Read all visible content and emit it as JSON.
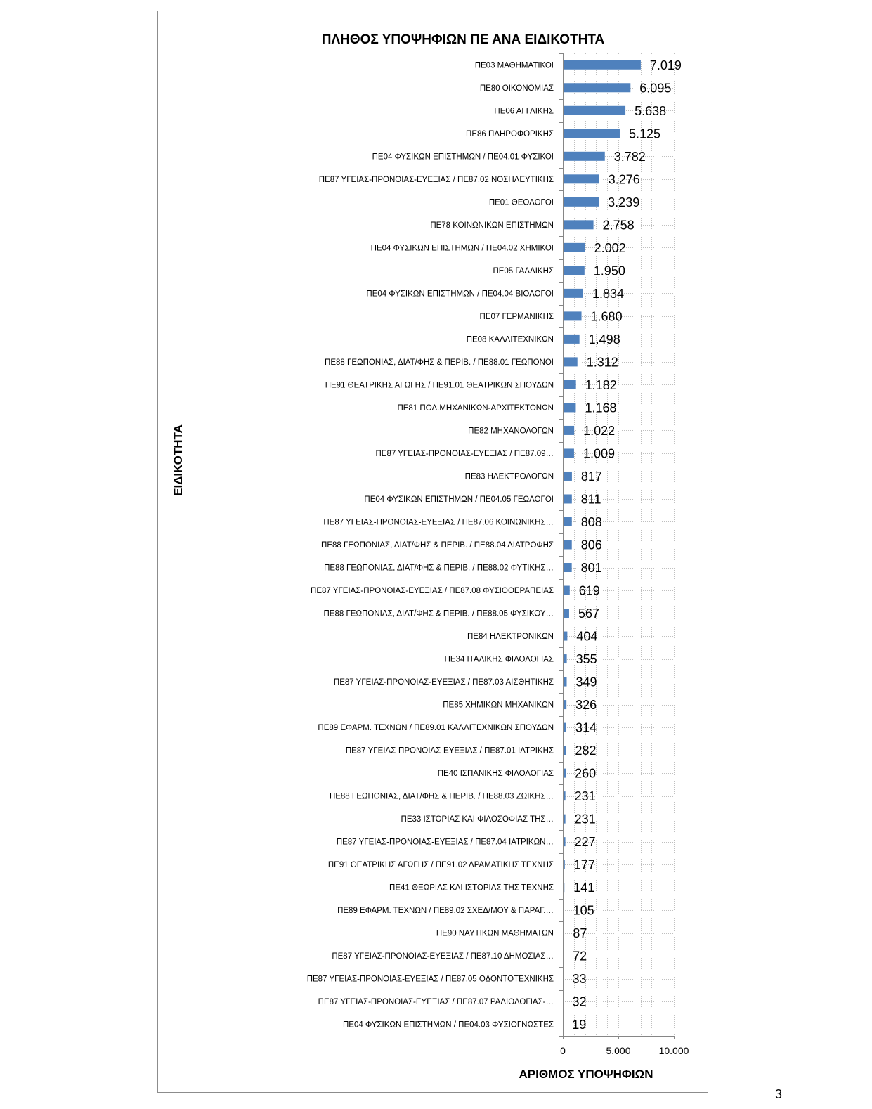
{
  "page_number": "3",
  "chart_data": {
    "type": "bar",
    "orientation": "horizontal",
    "title": "ΠΛΗΘΟΣ ΥΠΟΨΗΦΙΩΝ ΠΕ ΑΝΑ ΕΙΔΙΚΟΤΗΤΑ",
    "xlabel": "ΑΡΙΘΜΟΣ ΥΠΟΨΗΦΙΩΝ",
    "ylabel": "ΕΙΔΙΚΟΤΗΤΑ",
    "xlim": [
      0,
      10000
    ],
    "xticks": [
      0,
      5000,
      10000
    ],
    "xtick_labels": [
      "0",
      "5.000",
      "10.000"
    ],
    "grid": true,
    "bar_color": "#4F81BD",
    "categories": [
      "ΠΕ03 ΜΑΘΗΜΑΤΙΚΟΙ",
      "ΠΕ80 ΟΙΚΟΝΟΜΙΑΣ",
      "ΠΕ06 ΑΓΓΛΙΚΗΣ",
      "ΠΕ86 ΠΛΗΡΟΦΟΡΙΚΗΣ",
      "ΠΕ04 ΦΥΣΙΚΩΝ ΕΠΙΣΤΗΜΩΝ / ΠΕ04.01 ΦΥΣΙΚΟΙ",
      "ΠΕ87 ΥΓΕΙΑΣ-ΠΡΟΝΟΙΑΣ-ΕΥΕΞΙΑΣ / ΠΕ87.02 ΝΟΣΗΛΕΥΤΙΚΗΣ",
      "ΠΕ01 ΘΕΟΛΟΓΟΙ",
      "ΠΕ78 ΚΟΙΝΩΝΙΚΩΝ ΕΠΙΣΤΗΜΩΝ",
      "ΠΕ04 ΦΥΣΙΚΩΝ ΕΠΙΣΤΗΜΩΝ / ΠΕ04.02 ΧΗΜΙΚΟΙ",
      "ΠΕ05 ΓΑΛΛΙΚΗΣ",
      "ΠΕ04 ΦΥΣΙΚΩΝ ΕΠΙΣΤΗΜΩΝ / ΠΕ04.04 ΒΙΟΛΟΓΟΙ",
      "ΠΕ07 ΓΕΡΜΑΝΙΚΗΣ",
      "ΠΕ08 ΚΑΛΛΙΤΕΧΝΙΚΩΝ",
      "ΠΕ88 ΓΕΩΠΟΝΙΑΣ, ΔΙΑΤ/ΦΗΣ & ΠΕΡΙΒ. / ΠΕ88.01 ΓΕΩΠΟΝΟΙ",
      "ΠΕ91 ΘΕΑΤΡΙΚΗΣ ΑΓΩΓΗΣ / ΠΕ91.01 ΘΕΑΤΡΙΚΩΝ ΣΠΟΥΔΩΝ",
      "ΠΕ81 ΠΟΛ.ΜΗΧΑΝΙΚΩΝ-ΑΡΧΙΤΕΚΤΟΝΩΝ",
      "ΠΕ82 ΜΗΧΑΝΟΛΟΓΩΝ",
      "ΠΕ87 ΥΓΕΙΑΣ-ΠΡΟΝΟΙΑΣ-ΕΥΕΞΙΑΣ / ΠΕ87.09…",
      "ΠΕ83 ΗΛΕΚΤΡΟΛΟΓΩΝ",
      "ΠΕ04 ΦΥΣΙΚΩΝ ΕΠΙΣΤΗΜΩΝ / ΠΕ04.05 ΓΕΩΛΟΓΟΙ",
      "ΠΕ87 ΥΓΕΙΑΣ-ΠΡΟΝΟΙΑΣ-ΕΥΕΞΙΑΣ / ΠΕ87.06 ΚΟΙΝΩΝΙΚΗΣ…",
      "ΠΕ88 ΓΕΩΠΟΝΙΑΣ, ΔΙΑΤ/ΦΗΣ & ΠΕΡΙΒ. / ΠΕ88.04 ΔΙΑΤΡΟΦΗΣ",
      "ΠΕ88 ΓΕΩΠΟΝΙΑΣ, ΔΙΑΤ/ΦΗΣ & ΠΕΡΙΒ. / ΠΕ88.02 ΦΥΤΙΚΗΣ…",
      "ΠΕ87 ΥΓΕΙΑΣ-ΠΡΟΝΟΙΑΣ-ΕΥΕΞΙΑΣ / ΠΕ87.08 ΦΥΣΙΟΘΕΡΑΠΕΙΑΣ",
      "ΠΕ88 ΓΕΩΠΟΝΙΑΣ, ΔΙΑΤ/ΦΗΣ & ΠΕΡΙΒ. / ΠΕ88.05 ΦΥΣΙΚΟΥ…",
      "ΠΕ84 ΗΛΕΚΤΡΟΝΙΚΩΝ",
      "ΠΕ34 ΙΤΑΛΙΚΗΣ ΦΙΛΟΛΟΓΙΑΣ",
      "ΠΕ87 ΥΓΕΙΑΣ-ΠΡΟΝΟΙΑΣ-ΕΥΕΞΙΑΣ / ΠΕ87.03 ΑΙΣΘΗΤΙΚΗΣ",
      "ΠΕ85 ΧΗΜΙΚΩΝ ΜΗΧΑΝΙΚΩΝ",
      "ΠΕ89 ΕΦΑΡΜ. ΤΕΧΝΩΝ / ΠΕ89.01 ΚΑΛΛΙΤΕΧΝΙΚΩΝ ΣΠΟΥΔΩΝ",
      "ΠΕ87 ΥΓΕΙΑΣ-ΠΡΟΝΟΙΑΣ-ΕΥΕΞΙΑΣ / ΠΕ87.01 ΙΑΤΡΙΚΗΣ",
      "ΠΕ40 ΙΣΠΑΝΙΚΗΣ ΦΙΛΟΛΟΓΙΑΣ",
      "ΠΕ88 ΓΕΩΠΟΝΙΑΣ, ΔΙΑΤ/ΦΗΣ & ΠΕΡΙΒ. / ΠΕ88.03 ΖΩΙΚΗΣ…",
      "ΠΕ33 ΙΣΤΟΡΙΑΣ ΚΑΙ ΦΙΛΟΣΟΦΙΑΣ ΤΗΣ…",
      "ΠΕ87 ΥΓΕΙΑΣ-ΠΡΟΝΟΙΑΣ-ΕΥΕΞΙΑΣ / ΠΕ87.04 ΙΑΤΡΙΚΩΝ…",
      "ΠΕ91 ΘΕΑΤΡΙΚΗΣ ΑΓΩΓΗΣ / ΠΕ91.02 ΔΡΑΜΑΤΙΚΗΣ ΤΕΧΝΗΣ",
      "ΠΕ41 ΘΕΩΡΙΑΣ ΚΑΙ ΙΣΤΟΡΙΑΣ ΤΗΣ ΤΕΧΝΗΣ",
      "ΠΕ89 ΕΦΑΡΜ. ΤΕΧΝΩΝ / ΠΕ89.02 ΣΧΕΔ/ΜΟΥ & ΠΑΡΑΓ.…",
      "ΠΕ90 ΝΑΥΤΙΚΩΝ ΜΑΘΗΜΑΤΩΝ",
      "ΠΕ87 ΥΓΕΙΑΣ-ΠΡΟΝΟΙΑΣ-ΕΥΕΞΙΑΣ / ΠΕ87.10 ΔΗΜΟΣΙΑΣ…",
      "ΠΕ87 ΥΓΕΙΑΣ-ΠΡΟΝΟΙΑΣ-ΕΥΕΞΙΑΣ / ΠΕ87.05 ΟΔΟΝΤΟΤΕΧΝΙΚΗΣ",
      "ΠΕ87 ΥΓΕΙΑΣ-ΠΡΟΝΟΙΑΣ-ΕΥΕΞΙΑΣ / ΠΕ87.07 ΡΑΔΙΟΛΟΓΙΑΣ-…",
      "ΠΕ04 ΦΥΣΙΚΩΝ ΕΠΙΣΤΗΜΩΝ / ΠΕ04.03 ΦΥΣΙΟΓΝΩΣΤΕΣ"
    ],
    "values": [
      7019,
      6095,
      5638,
      5125,
      3782,
      3276,
      3239,
      2758,
      2002,
      1950,
      1834,
      1680,
      1498,
      1312,
      1182,
      1168,
      1022,
      1009,
      817,
      811,
      808,
      806,
      801,
      619,
      567,
      404,
      355,
      349,
      326,
      314,
      282,
      260,
      231,
      231,
      227,
      177,
      141,
      105,
      87,
      72,
      33,
      32,
      19
    ],
    "data_labels": [
      "7.019",
      "6.095",
      "5.638",
      "5.125",
      "3.782",
      "3.276",
      "3.239",
      "2.758",
      "2.002",
      "1.950",
      "1.834",
      "1.680",
      "1.498",
      "1.312",
      "1.182",
      "1.168",
      "1.022",
      "1.009",
      "817",
      "811",
      "808",
      "806",
      "801",
      "619",
      "567",
      "404",
      "355",
      "349",
      "326",
      "314",
      "282",
      "260",
      "231",
      "231",
      "227",
      "177",
      "141",
      "105",
      "87",
      "72",
      "33",
      "32",
      "19"
    ]
  }
}
